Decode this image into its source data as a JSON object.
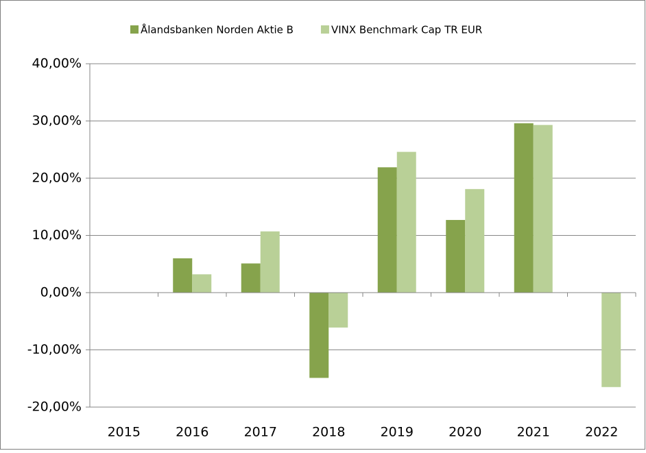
{
  "chart_data": {
    "type": "bar",
    "categories": [
      "2015",
      "2016",
      "2017",
      "2018",
      "2019",
      "2020",
      "2021",
      "2022"
    ],
    "series": [
      {
        "name": "Ålandsbanken Norden Aktie B",
        "color": "#86a34c",
        "values": [
          null,
          6.0,
          5.1,
          -14.9,
          21.9,
          12.7,
          29.6,
          null
        ]
      },
      {
        "name": "VINX Benchmark Cap TR EUR",
        "color": "#b9d097",
        "values": [
          null,
          3.2,
          10.7,
          -6.1,
          24.6,
          18.1,
          29.3,
          -16.5
        ]
      }
    ],
    "ylim": [
      -20,
      40
    ],
    "yticks": [
      {
        "value": -20,
        "label": "-20,00%"
      },
      {
        "value": -10,
        "label": "-10,00%"
      },
      {
        "value": 0,
        "label": "0,00%"
      },
      {
        "value": 10,
        "label": "10,00%"
      },
      {
        "value": 20,
        "label": "20,00%"
      },
      {
        "value": 30,
        "label": "30,00%"
      },
      {
        "value": 40,
        "label": "40,00%"
      }
    ],
    "grid": true,
    "legend": "top"
  }
}
